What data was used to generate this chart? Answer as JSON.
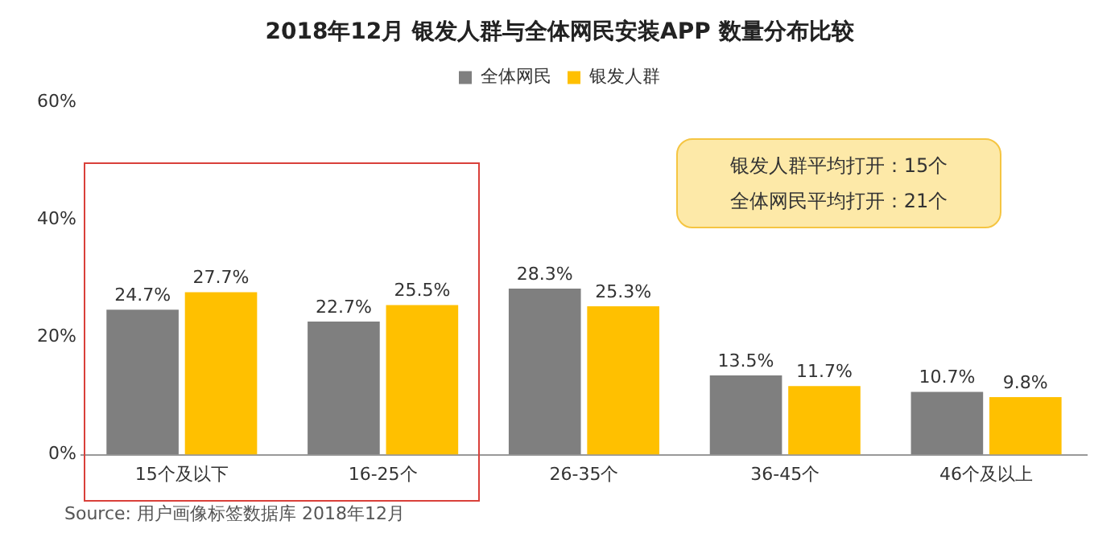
{
  "chart_data": {
    "type": "bar",
    "title": "2018年12月 银发人群与全体网民安装APP 数量分布比较",
    "categories": [
      "15个及以下",
      "16-25个",
      "26-35个",
      "36-45个",
      "46个及以上"
    ],
    "series": [
      {
        "name": "全体网民",
        "color": "#7f7f7f",
        "values": [
          24.7,
          22.7,
          28.3,
          13.5,
          10.7
        ],
        "value_labels": [
          "24.7%",
          "22.7%",
          "28.3%",
          "13.5%",
          "10.7%"
        ]
      },
      {
        "name": "银发人群",
        "color": "#ffc000",
        "values": [
          27.7,
          25.5,
          25.3,
          11.7,
          9.8
        ],
        "value_labels": [
          "27.7%",
          "25.5%",
          "25.3%",
          "11.7%",
          "9.8%"
        ]
      }
    ],
    "ylim": [
      0,
      60
    ],
    "yticks": [
      {
        "value": 0,
        "label": "0%"
      },
      {
        "value": 20,
        "label": "20%"
      },
      {
        "value": 40,
        "label": "40%"
      },
      {
        "value": 60,
        "label": "60%"
      }
    ],
    "grid": false,
    "legend": "top",
    "annotations": [
      "银发人群平均打开：15个",
      "全体网民平均打开：21个",
      "Source:  用户画像标签数据库 2018年12月"
    ]
  }
}
